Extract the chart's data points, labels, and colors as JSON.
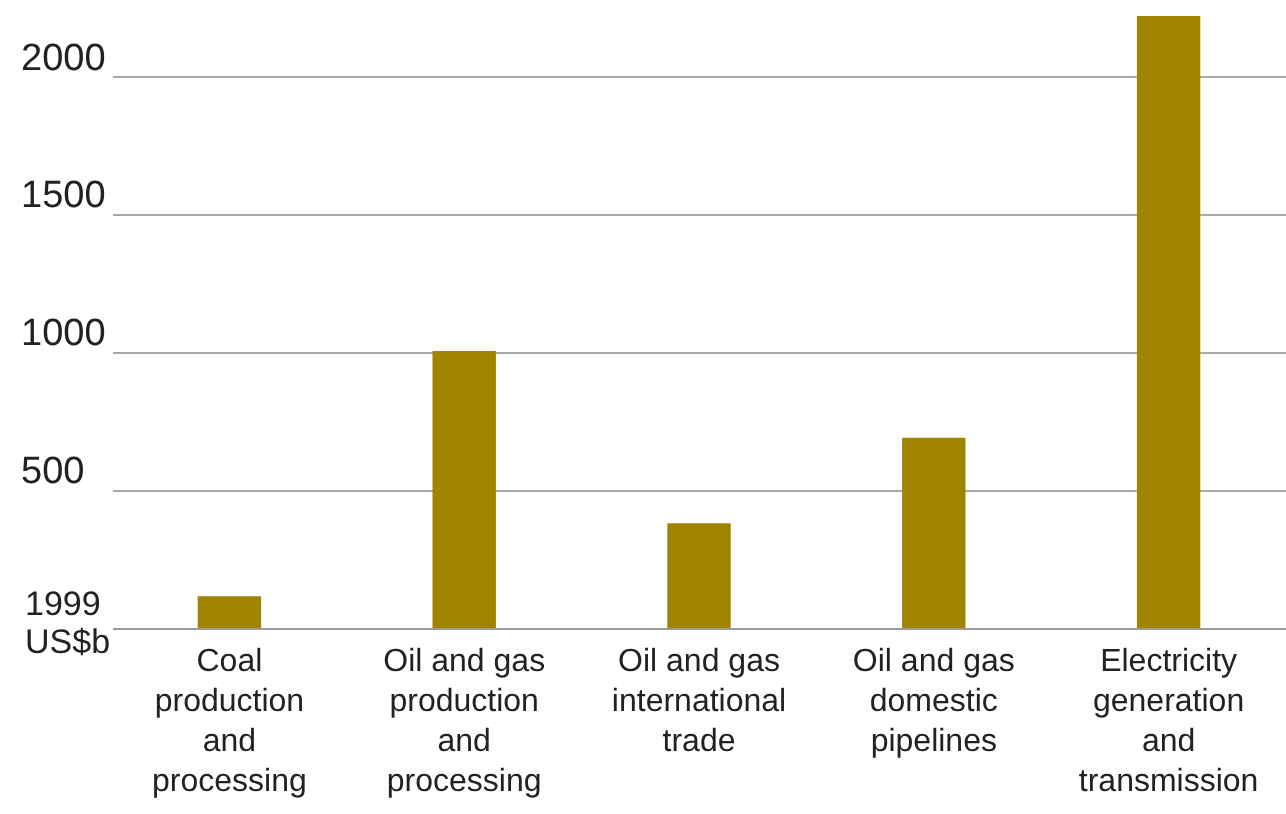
{
  "chart_data": {
    "type": "bar",
    "ylabel": "1999 US$b",
    "categories": [
      "Coal production and processing",
      "Oil and gas production and processing",
      "Oil and gas international trade",
      "Oil and gas domestic pipelines",
      "Electricity generation and transmission"
    ],
    "values": [
      115,
      1005,
      380,
      690,
      2220
    ],
    "color": "#a08400",
    "ylim": [
      0,
      2220
    ],
    "yticks": [
      500,
      1000,
      1500,
      2000
    ],
    "grid": "y"
  }
}
